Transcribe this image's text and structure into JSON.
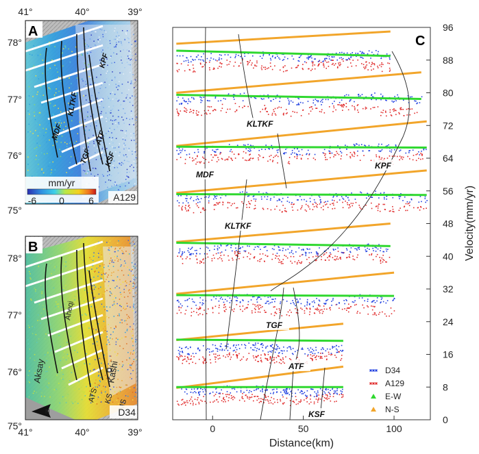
{
  "colors": {
    "d34": "#1f3fe0",
    "a129": "#e02a2a",
    "ew": "#2fd82f",
    "ns": "#f2a52a"
  },
  "maps": {
    "lon_ticks": [
      "41°",
      "40°",
      "39°"
    ],
    "lat_ticks": [
      "78°",
      "77°",
      "76°",
      "75°"
    ],
    "panel_a": {
      "label": "A",
      "track": "A129",
      "colorbar_unit": "mm/yr",
      "colorbar_ticks": [
        "-6",
        "0",
        "6"
      ],
      "faults": [
        "KPF",
        "KLTKF",
        "MDF",
        "TGF",
        "ATF",
        "KSF"
      ]
    },
    "panel_b": {
      "label": "B",
      "track": "D34",
      "places": [
        "Aheqi",
        "Aksay",
        "Kashi",
        "ATS",
        "KS",
        "MS"
      ]
    }
  },
  "chart_data": {
    "type": "scatter",
    "label": "C",
    "xlabel": "Distance(km)",
    "ylabel": "Velocity(mm/yr)",
    "xlim": [
      -22,
      120
    ],
    "ylim": [
      0,
      96
    ],
    "x_ticks": [
      "0",
      "50",
      "100"
    ],
    "y_ticks": [
      "0",
      "8",
      "16",
      "24",
      "32",
      "40",
      "48",
      "56",
      "64",
      "72",
      "80",
      "88",
      "96"
    ],
    "legend": [
      "D34",
      "A129",
      "E-W",
      "N-S"
    ],
    "profiles": [
      {
        "end": 98,
        "ns": [
          92.0,
          95.0
        ],
        "ew": [
          90.3,
          89.0
        ],
        "d34": 89.0,
        "a129": 86.8
      },
      {
        "end": 115,
        "ns": [
          80.0,
          85.0
        ],
        "ew": [
          79.5,
          78.5
        ],
        "d34": 78.6,
        "a129": 76.0
      },
      {
        "end": 118,
        "ns": [
          67.0,
          73.0
        ],
        "ew": [
          66.8,
          66.6
        ],
        "d34": 66.3,
        "a129": 64.2
      },
      {
        "end": 118,
        "ns": [
          55.5,
          61.0
        ],
        "ew": [
          55.2,
          55.0
        ],
        "d34": 54.6,
        "a129": 52.3
      },
      {
        "end": 98,
        "ns": [
          43.5,
          48.0
        ],
        "ew": [
          43.3,
          42.5
        ],
        "d34": 41.8,
        "a129": 39.8
      },
      {
        "end": 100,
        "ns": [
          30.8,
          36.0
        ],
        "ew": [
          30.5,
          30.3
        ],
        "d34": 29.3,
        "a129": 27.0
      },
      {
        "end": 72,
        "ns": [
          19.5,
          23.5
        ],
        "ew": [
          19.6,
          19.3
        ],
        "d34": 17.5,
        "a129": 15.2
      },
      {
        "end": 72,
        "ns": [
          7.8,
          13.0
        ],
        "ew": [
          8.0,
          8.0
        ],
        "d34": 7.2,
        "a129": 5.2
      }
    ],
    "fault_labels": [
      "MDF",
      "KLTKF",
      "KLTKF",
      "KPF",
      "TGF",
      "ATF",
      "KSF"
    ]
  }
}
